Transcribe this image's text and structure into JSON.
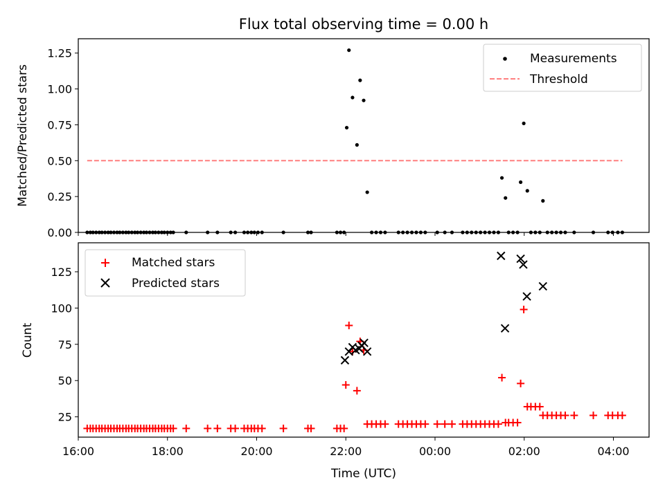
{
  "chart_data": [
    {
      "type": "scatter",
      "title": "Flux total observing time = 0.00 h",
      "ylabel": "Matched/Predicted stars",
      "xlabel": "",
      "xlim": [
        16.0,
        28.8
      ],
      "ylim": [
        0.0,
        1.35
      ],
      "yticks": [
        "0.00",
        "0.25",
        "0.50",
        "0.75",
        "1.00",
        "1.25"
      ],
      "ytick_values": [
        0.0,
        0.25,
        0.5,
        0.75,
        1.0,
        1.25
      ],
      "legend": "top-right",
      "series": [
        {
          "name": "Measurements",
          "color": "#000000",
          "marker": "dot",
          "points": [
            [
              16.2,
              0
            ],
            [
              16.27,
              0
            ],
            [
              16.33,
              0
            ],
            [
              16.4,
              0
            ],
            [
              16.47,
              0
            ],
            [
              16.53,
              0
            ],
            [
              16.6,
              0
            ],
            [
              16.67,
              0
            ],
            [
              16.73,
              0
            ],
            [
              16.8,
              0
            ],
            [
              16.87,
              0
            ],
            [
              16.93,
              0
            ],
            [
              17.0,
              0
            ],
            [
              17.07,
              0
            ],
            [
              17.13,
              0
            ],
            [
              17.2,
              0
            ],
            [
              17.27,
              0
            ],
            [
              17.33,
              0
            ],
            [
              17.4,
              0
            ],
            [
              17.47,
              0
            ],
            [
              17.53,
              0
            ],
            [
              17.6,
              0
            ],
            [
              17.67,
              0
            ],
            [
              17.73,
              0
            ],
            [
              17.8,
              0
            ],
            [
              17.87,
              0
            ],
            [
              17.93,
              0
            ],
            [
              18.0,
              0
            ],
            [
              18.07,
              0
            ],
            [
              18.13,
              0
            ],
            [
              18.42,
              0
            ],
            [
              18.9,
              0
            ],
            [
              19.12,
              0
            ],
            [
              19.42,
              0
            ],
            [
              19.52,
              0
            ],
            [
              19.72,
              0
            ],
            [
              19.8,
              0
            ],
            [
              19.88,
              0
            ],
            [
              19.95,
              0
            ],
            [
              20.03,
              0
            ],
            [
              20.12,
              0
            ],
            [
              20.6,
              0
            ],
            [
              21.15,
              0
            ],
            [
              21.22,
              0
            ],
            [
              21.8,
              0
            ],
            [
              21.88,
              0
            ],
            [
              21.96,
              0
            ],
            [
              22.02,
              0.73
            ],
            [
              22.07,
              1.27
            ],
            [
              22.15,
              0.94
            ],
            [
              22.25,
              0.61
            ],
            [
              22.32,
              1.06
            ],
            [
              22.4,
              0.92
            ],
            [
              22.48,
              0.28
            ],
            [
              22.58,
              0
            ],
            [
              22.68,
              0
            ],
            [
              22.78,
              0
            ],
            [
              22.88,
              0
            ],
            [
              23.18,
              0
            ],
            [
              23.28,
              0
            ],
            [
              23.38,
              0
            ],
            [
              23.48,
              0
            ],
            [
              23.58,
              0
            ],
            [
              23.68,
              0
            ],
            [
              23.78,
              0
            ],
            [
              24.05,
              0
            ],
            [
              24.22,
              0
            ],
            [
              24.38,
              0
            ],
            [
              24.62,
              0
            ],
            [
              24.72,
              0
            ],
            [
              24.82,
              0
            ],
            [
              24.92,
              0
            ],
            [
              25.02,
              0
            ],
            [
              25.12,
              0
            ],
            [
              25.22,
              0
            ],
            [
              25.32,
              0
            ],
            [
              25.42,
              0
            ],
            [
              25.5,
              0.38
            ],
            [
              25.58,
              0.24
            ],
            [
              25.65,
              0
            ],
            [
              25.75,
              0
            ],
            [
              25.85,
              0
            ],
            [
              25.92,
              0.35
            ],
            [
              25.99,
              0.76
            ],
            [
              26.07,
              0.29
            ],
            [
              26.15,
              0
            ],
            [
              26.25,
              0
            ],
            [
              26.35,
              0
            ],
            [
              26.42,
              0.22
            ],
            [
              26.52,
              0
            ],
            [
              26.62,
              0
            ],
            [
              26.72,
              0
            ],
            [
              26.82,
              0
            ],
            [
              26.92,
              0
            ],
            [
              27.12,
              0
            ],
            [
              27.55,
              0
            ],
            [
              27.88,
              0
            ],
            [
              27.98,
              0
            ],
            [
              28.1,
              0
            ],
            [
              28.2,
              0
            ]
          ]
        },
        {
          "name": "Threshold",
          "color": "#ff7f7f",
          "style": "dashed",
          "points": [
            [
              16.2,
              0.5
            ],
            [
              28.2,
              0.5
            ]
          ]
        }
      ]
    },
    {
      "type": "scatter",
      "title": "",
      "xlabel": "Time (UTC)",
      "ylabel": "Count",
      "xlim": [
        16.0,
        28.8
      ],
      "ylim": [
        11.0,
        145.0
      ],
      "xticks": [
        "16:00",
        "18:00",
        "20:00",
        "22:00",
        "00:00",
        "02:00",
        "04:00"
      ],
      "xtick_values": [
        16,
        18,
        20,
        22,
        24,
        26,
        28
      ],
      "yticks": [
        "25",
        "50",
        "75",
        "100",
        "125"
      ],
      "ytick_values": [
        25,
        50,
        75,
        100,
        125
      ],
      "legend": "top-left",
      "series": [
        {
          "name": "Matched stars",
          "color": "#ff0000",
          "marker": "plus",
          "points": [
            [
              16.2,
              17
            ],
            [
              16.27,
              17
            ],
            [
              16.33,
              17
            ],
            [
              16.4,
              17
            ],
            [
              16.47,
              17
            ],
            [
              16.53,
              17
            ],
            [
              16.6,
              17
            ],
            [
              16.67,
              17
            ],
            [
              16.73,
              17
            ],
            [
              16.8,
              17
            ],
            [
              16.87,
              17
            ],
            [
              16.93,
              17
            ],
            [
              17.0,
              17
            ],
            [
              17.07,
              17
            ],
            [
              17.13,
              17
            ],
            [
              17.2,
              17
            ],
            [
              17.27,
              17
            ],
            [
              17.33,
              17
            ],
            [
              17.4,
              17
            ],
            [
              17.47,
              17
            ],
            [
              17.53,
              17
            ],
            [
              17.6,
              17
            ],
            [
              17.67,
              17
            ],
            [
              17.73,
              17
            ],
            [
              17.8,
              17
            ],
            [
              17.87,
              17
            ],
            [
              17.93,
              17
            ],
            [
              18.0,
              17
            ],
            [
              18.07,
              17
            ],
            [
              18.13,
              17
            ],
            [
              18.42,
              17
            ],
            [
              18.9,
              17
            ],
            [
              19.12,
              17
            ],
            [
              19.42,
              17
            ],
            [
              19.52,
              17
            ],
            [
              19.72,
              17
            ],
            [
              19.8,
              17
            ],
            [
              19.88,
              17
            ],
            [
              19.95,
              17
            ],
            [
              20.03,
              17
            ],
            [
              20.12,
              17
            ],
            [
              20.6,
              17
            ],
            [
              21.15,
              17
            ],
            [
              21.22,
              17
            ],
            [
              21.8,
              17
            ],
            [
              21.88,
              17
            ],
            [
              21.96,
              17
            ],
            [
              22.0,
              47
            ],
            [
              22.07,
              88
            ],
            [
              22.15,
              70
            ],
            [
              22.25,
              43
            ],
            [
              22.32,
              77
            ],
            [
              22.4,
              71
            ],
            [
              22.48,
              20
            ],
            [
              22.58,
              20
            ],
            [
              22.68,
              20
            ],
            [
              22.78,
              20
            ],
            [
              22.88,
              20
            ],
            [
              23.18,
              20
            ],
            [
              23.28,
              20
            ],
            [
              23.38,
              20
            ],
            [
              23.48,
              20
            ],
            [
              23.58,
              20
            ],
            [
              23.68,
              20
            ],
            [
              23.78,
              20
            ],
            [
              24.05,
              20
            ],
            [
              24.22,
              20
            ],
            [
              24.38,
              20
            ],
            [
              24.62,
              20
            ],
            [
              24.72,
              20
            ],
            [
              24.82,
              20
            ],
            [
              24.92,
              20
            ],
            [
              25.02,
              20
            ],
            [
              25.12,
              20
            ],
            [
              25.22,
              20
            ],
            [
              25.32,
              20
            ],
            [
              25.42,
              20
            ],
            [
              25.5,
              52
            ],
            [
              25.58,
              21
            ],
            [
              25.65,
              21
            ],
            [
              25.75,
              21
            ],
            [
              25.85,
              21
            ],
            [
              25.92,
              48
            ],
            [
              25.99,
              99
            ],
            [
              26.07,
              32
            ],
            [
              26.15,
              32
            ],
            [
              26.25,
              32
            ],
            [
              26.35,
              32
            ],
            [
              26.42,
              26
            ],
            [
              26.52,
              26
            ],
            [
              26.62,
              26
            ],
            [
              26.72,
              26
            ],
            [
              26.82,
              26
            ],
            [
              26.92,
              26
            ],
            [
              27.12,
              26
            ],
            [
              27.55,
              26
            ],
            [
              27.88,
              26
            ],
            [
              27.98,
              26
            ],
            [
              28.1,
              26
            ],
            [
              28.2,
              26
            ]
          ]
        },
        {
          "name": "Predicted stars",
          "color": "#000000",
          "marker": "x",
          "points": [
            [
              21.98,
              64
            ],
            [
              22.07,
              70
            ],
            [
              22.15,
              73
            ],
            [
              22.22,
              71
            ],
            [
              22.3,
              72
            ],
            [
              22.36,
              74
            ],
            [
              22.41,
              76
            ],
            [
              22.48,
              70
            ],
            [
              25.48,
              136
            ],
            [
              25.57,
              86
            ],
            [
              25.92,
              134
            ],
            [
              25.98,
              130
            ],
            [
              26.06,
              108
            ],
            [
              26.42,
              115
            ]
          ]
        }
      ]
    }
  ]
}
